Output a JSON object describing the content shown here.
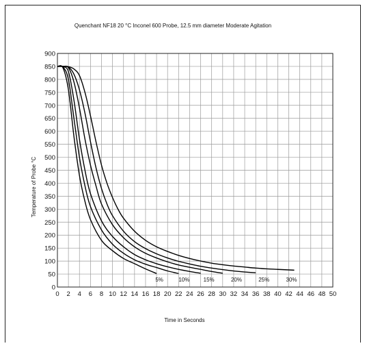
{
  "chart_data": {
    "type": "line",
    "title": "Quenchant NF18 20 °C Inconel 600 Probe, 12.5 mm diameter Moderate Agitation",
    "xlabel": "Time in Seconds",
    "ylabel": "Temperature of Probe °C",
    "xlim": [
      0,
      50
    ],
    "ylim": [
      0,
      900
    ],
    "xticks": [
      0,
      2,
      4,
      6,
      8,
      10,
      12,
      14,
      16,
      18,
      20,
      22,
      24,
      26,
      28,
      30,
      32,
      34,
      36,
      38,
      40,
      42,
      44,
      46,
      48,
      50
    ],
    "yticks": [
      0,
      50,
      100,
      150,
      200,
      250,
      300,
      350,
      400,
      450,
      500,
      550,
      600,
      650,
      700,
      750,
      800,
      850,
      900
    ],
    "grid": true,
    "series": [
      {
        "name": "5%",
        "label_x": 18.5,
        "x": [
          0,
          1,
          2,
          3,
          4,
          5,
          6,
          8,
          10,
          12,
          14,
          16,
          18
        ],
        "y": [
          850,
          845,
          760,
          580,
          430,
          330,
          260,
          180,
          140,
          110,
          90,
          70,
          52
        ]
      },
      {
        "name": "10%",
        "label_x": 23,
        "x": [
          0,
          1,
          2,
          3,
          4,
          5,
          6,
          8,
          10,
          12,
          14,
          16,
          18,
          20,
          22
        ],
        "y": [
          850,
          848,
          800,
          650,
          500,
          390,
          310,
          220,
          165,
          130,
          105,
          88,
          75,
          62,
          52
        ]
      },
      {
        "name": "15%",
        "label_x": 27.5,
        "x": [
          0,
          1,
          2,
          3,
          4,
          5,
          6,
          8,
          10,
          12,
          14,
          16,
          18,
          20,
          22,
          24,
          26
        ],
        "y": [
          850,
          849,
          830,
          720,
          570,
          450,
          360,
          255,
          195,
          155,
          125,
          105,
          90,
          78,
          68,
          60,
          53
        ]
      },
      {
        "name": "20%",
        "label_x": 32.5,
        "x": [
          0,
          1,
          2,
          3,
          4,
          5,
          6,
          7,
          8,
          10,
          12,
          14,
          16,
          18,
          20,
          22,
          24,
          26,
          28,
          30
        ],
        "y": [
          850,
          850,
          845,
          790,
          690,
          570,
          470,
          390,
          320,
          240,
          190,
          155,
          130,
          112,
          97,
          85,
          76,
          68,
          60,
          53
        ]
      },
      {
        "name": "25%",
        "label_x": 37.5,
        "x": [
          0,
          1,
          2,
          3,
          4,
          5,
          6,
          7,
          8,
          9,
          10,
          12,
          14,
          16,
          18,
          20,
          22,
          24,
          26,
          28,
          30,
          32,
          34,
          36
        ],
        "y": [
          850,
          850,
          848,
          820,
          760,
          670,
          560,
          460,
          380,
          320,
          275,
          215,
          175,
          148,
          128,
          112,
          99,
          89,
          80,
          73,
          67,
          62,
          58,
          55
        ]
      },
      {
        "name": "30%",
        "label_x": 42.5,
        "x": [
          0,
          1,
          2,
          3,
          4,
          5,
          6,
          7,
          8,
          9,
          10,
          11,
          12,
          14,
          16,
          18,
          20,
          22,
          24,
          26,
          28,
          30,
          32,
          34,
          36,
          38,
          40,
          42,
          43
        ],
        "y": [
          850,
          850,
          849,
          840,
          815,
          750,
          660,
          560,
          470,
          400,
          345,
          300,
          265,
          215,
          180,
          155,
          137,
          122,
          110,
          100,
          92,
          86,
          81,
          77,
          73,
          70,
          68,
          66,
          65
        ]
      }
    ]
  }
}
